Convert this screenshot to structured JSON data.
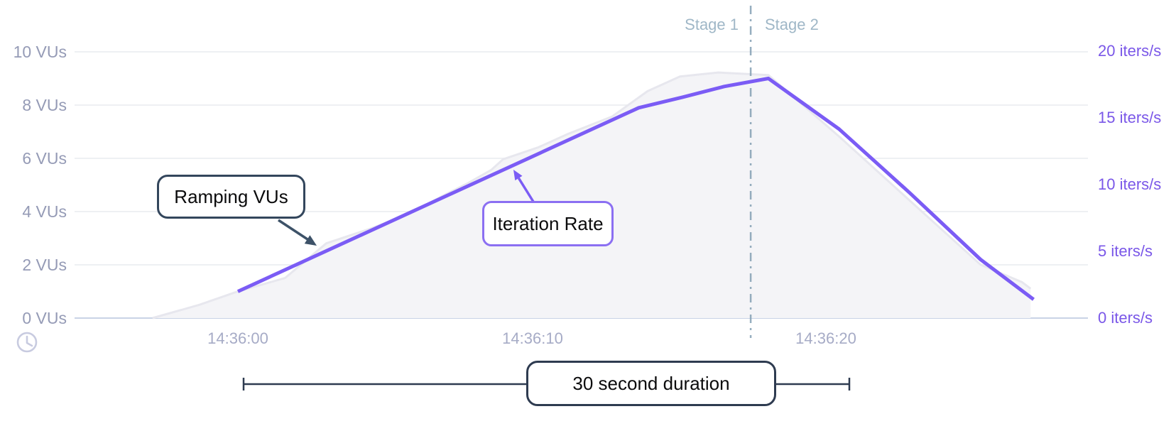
{
  "chart_data": {
    "type": "area",
    "title": "",
    "x_axis": {
      "time_format": "HH:MM:SS",
      "ticks": [
        {
          "label": "14:36:00",
          "t": 0
        },
        {
          "label": "14:36:10",
          "t": 10
        },
        {
          "label": "14:36:20",
          "t": 20
        }
      ],
      "range_seconds": [
        -3.2,
        28.9
      ]
    },
    "y_axis_left": {
      "unit": "VUs",
      "range": [
        0,
        10
      ],
      "ticks": [
        {
          "label": "0 VUs",
          "value": 0
        },
        {
          "label": "2 VUs",
          "value": 2
        },
        {
          "label": "4 VUs",
          "value": 4
        },
        {
          "label": "6 VUs",
          "value": 6
        },
        {
          "label": "8 VUs",
          "value": 8
        },
        {
          "label": "10 VUs",
          "value": 10
        }
      ]
    },
    "y_axis_right": {
      "unit": "iters/s",
      "range": [
        0,
        20
      ],
      "ticks": [
        {
          "label": "0 iters/s",
          "value": 0
        },
        {
          "label": "5 iters/s",
          "value": 5
        },
        {
          "label": "10 iters/s",
          "value": 10
        },
        {
          "label": "15 iters/s",
          "value": 15
        },
        {
          "label": "20 iters/s",
          "value": 20
        }
      ]
    },
    "series": [
      {
        "name": "Ramping VUs",
        "type": "line",
        "axis": "left",
        "color": "#7b5cf5",
        "points": [
          [
            0,
            1
          ],
          [
            13.6,
            7.9
          ],
          [
            15.1,
            8.3
          ],
          [
            16.5,
            8.7
          ],
          [
            18,
            9
          ],
          [
            20.4,
            7.1
          ],
          [
            22.8,
            4.7
          ],
          [
            25.2,
            2.2
          ],
          [
            27,
            0.7
          ]
        ]
      },
      {
        "name": "Iteration Rate",
        "type": "area",
        "axis": "right",
        "fill": "#f4f4f7",
        "edge": "#e7e7ee",
        "points": [
          [
            -2.9,
            0
          ],
          [
            -1.3,
            1
          ],
          [
            0,
            2
          ],
          [
            1.6,
            3
          ],
          [
            3,
            5.6
          ],
          [
            4.5,
            6.7
          ],
          [
            5.8,
            7.8
          ],
          [
            6.9,
            9.1
          ],
          [
            7.8,
            10.1
          ],
          [
            8.6,
            11.1
          ],
          [
            9,
            11.9
          ],
          [
            10.2,
            12.8
          ],
          [
            11.2,
            13.8
          ],
          [
            12.7,
            15.1
          ],
          [
            13.9,
            17
          ],
          [
            15,
            18.1
          ],
          [
            16.3,
            18.4
          ],
          [
            18,
            18.2
          ],
          [
            20.4,
            13.6
          ],
          [
            22.8,
            8.8
          ],
          [
            25.2,
            4
          ],
          [
            26.6,
            2.7
          ],
          [
            26.9,
            2.2
          ]
        ]
      }
    ],
    "stages": [
      {
        "label": "Stage 1"
      },
      {
        "label": "Stage 2"
      }
    ],
    "stage_divider_t": 17.4,
    "grid": "horizontal",
    "legend": "none"
  },
  "annotations": {
    "ramping_vus": "Ramping VUs",
    "iteration_rate": "Iteration Rate",
    "duration": "30 second duration"
  },
  "icons": {
    "clock": "clock-icon"
  },
  "colors": {
    "vus_line": "#7b5cf5",
    "area_fill": "#f4f4f7",
    "area_edge": "#e7e7ee",
    "grid": "#eef0f3",
    "baseline": "#c9d3e6",
    "left_axis_text": "#959bb6",
    "right_axis_text": "#7a57e8",
    "time_axis_text": "#a6abc6",
    "stage_text": "#9fb7c7",
    "stage_line": "#84a0b4",
    "dark_callout_border": "#33465c",
    "purple_callout_border": "#8b6ff2",
    "arrow_dark": "#3d5268",
    "duration_line": "#2e3b50",
    "clock_icon": "#c8cbe0"
  }
}
